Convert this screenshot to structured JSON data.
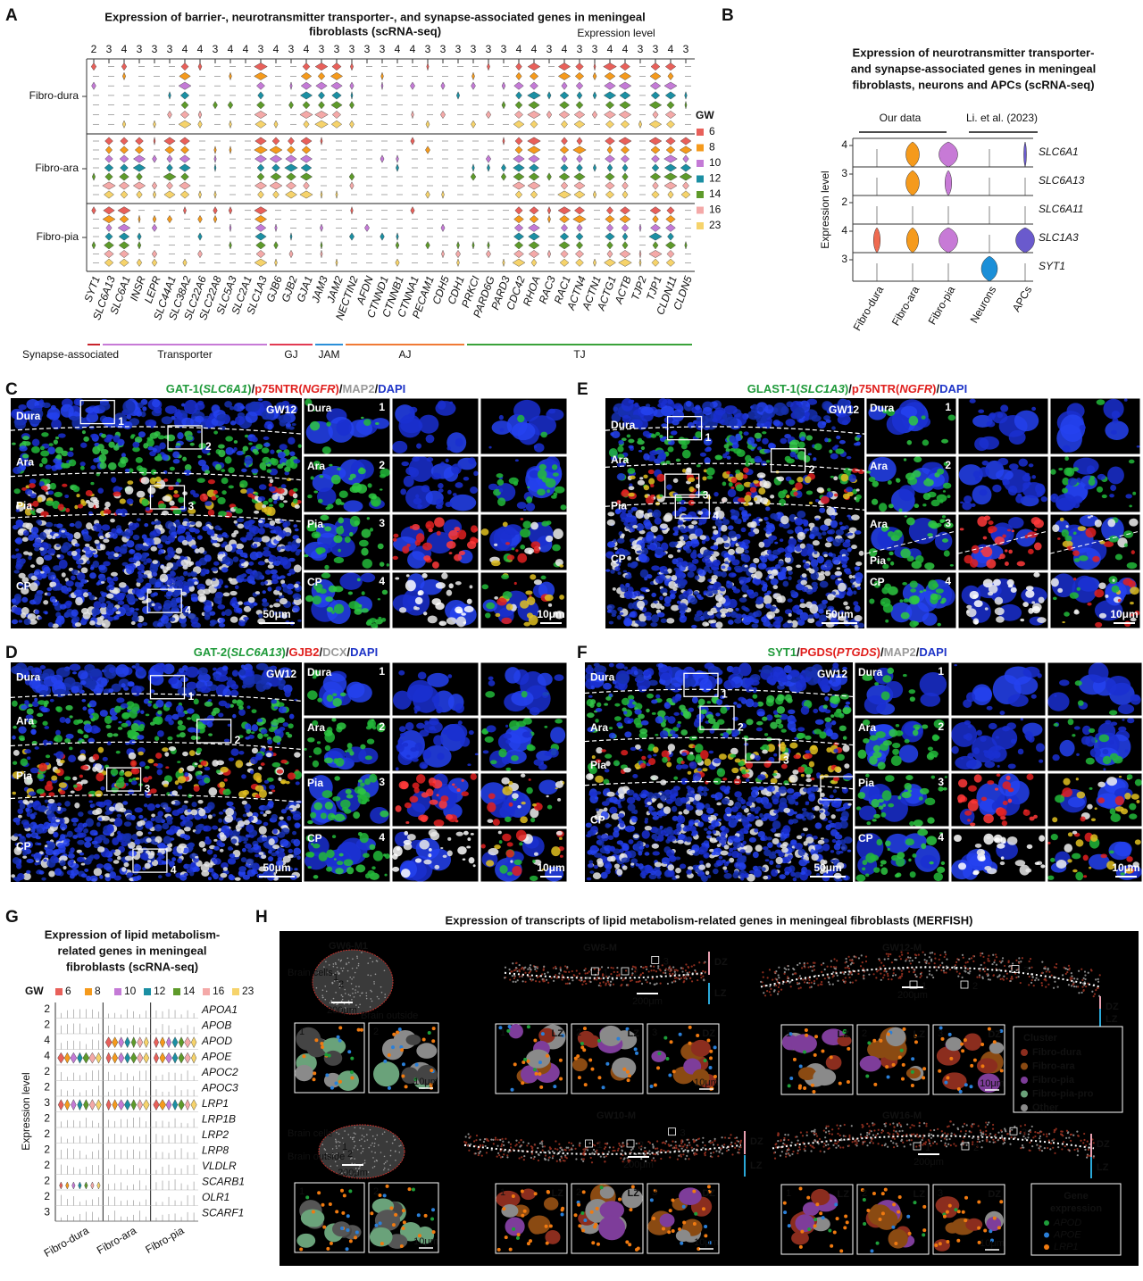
{
  "A": {
    "label": "A",
    "title": [
      "Expression of barrier-, neurotransmitter transporter-, and synapse-associated genes in meningeal",
      "fibroblasts (scRNA-seq)"
    ],
    "axis_label": "Expression level",
    "rows": [
      "Fibro-dura",
      "Fibro-ara",
      "Fibro-pia"
    ],
    "groups": [
      {
        "name": "Synapse-associated",
        "color": "#c8242c",
        "genes": [
          "SYT1"
        ],
        "levels": [
          2
        ]
      },
      {
        "name": "Transporter",
        "color": "#c77ad6",
        "genes": [
          "SLC6A13",
          "SLC6A1",
          "INSR",
          "LEPR",
          "SLC44A1",
          "SLC38A2",
          "SLC22A6",
          "SLC22A8",
          "SLC5A3",
          "SLC2A1",
          "SLC1A3"
        ],
        "levels": [
          3,
          4,
          3,
          3,
          3,
          4,
          4,
          3,
          4,
          4,
          3
        ]
      },
      {
        "name": "GJ",
        "color": "#e23a52",
        "genes": [
          "GJB6",
          "GJB2",
          "GJA1"
        ],
        "levels": [
          4,
          3,
          4
        ]
      },
      {
        "name": "JAM",
        "color": "#2b8fd8",
        "genes": [
          "JAM3",
          "JAM2"
        ],
        "levels": [
          3,
          3
        ]
      },
      {
        "name": "AJ",
        "color": "#f07a35",
        "genes": [
          "NECTIN2",
          "AFDN",
          "CTNND1",
          "CTNNB1",
          "CTNNA1",
          "PECAM1",
          "CDH5",
          "CDH1"
        ],
        "levels": [
          3,
          3,
          3,
          4,
          4,
          3,
          3,
          3
        ]
      },
      {
        "name": "TJ",
        "color": "#3aa23a",
        "genes": [
          "PRKCI",
          "PARD6G",
          "PARD3",
          "CDC42",
          "RHOA",
          "RAC3",
          "RAC1",
          "ACTN4",
          "ACTN1",
          "ACTG1",
          "ACTB",
          "TJP2",
          "TJP1",
          "CLDN11",
          "CLDN5"
        ],
        "levels": [
          3,
          3,
          3,
          4,
          4,
          3,
          4,
          3,
          3,
          4,
          4,
          3,
          3,
          4,
          3
        ]
      }
    ],
    "legend": {
      "title": "GW",
      "items": [
        {
          "label": 6,
          "color": "#e8605a"
        },
        {
          "label": 8,
          "color": "#f59a1c"
        },
        {
          "label": 10,
          "color": "#c47ad6"
        },
        {
          "label": 12,
          "color": "#1b8fa3"
        },
        {
          "label": 14,
          "color": "#5e9a2a"
        },
        {
          "label": 16,
          "color": "#f4a9a8"
        },
        {
          "label": 23,
          "color": "#f6d36b"
        }
      ]
    }
  },
  "B": {
    "label": "B",
    "title": [
      "Expression of neurotransmitter transporter-",
      "and synapse-associated genes in meningeal",
      "fibroblasts, neurons and APCs (scRNA-seq)"
    ],
    "sources": [
      "Our data",
      "Li. et al. (2023)"
    ],
    "axis_label": "Expression level",
    "genes": [
      {
        "name": "SLC6A1",
        "level": 4
      },
      {
        "name": "SLC6A13",
        "level": 3
      },
      {
        "name": "SLC6A11",
        "level": 2
      },
      {
        "name": "SLC1A3",
        "level": 4
      },
      {
        "name": "SYT1",
        "level": 3
      }
    ],
    "categories": [
      {
        "name": "Fibro-dura",
        "color": "#ef6a50"
      },
      {
        "name": "Fibro-ara",
        "color": "#f59a1c"
      },
      {
        "name": "Fibro-pia",
        "color": "#c77ad6"
      },
      {
        "name": "Neurons",
        "color": "#1b8fd8"
      },
      {
        "name": "APCs",
        "color": "#6a5acd"
      }
    ]
  },
  "C": {
    "label": "C",
    "title": [
      {
        "text": "GAT-1(",
        "color": "#1f9a3a"
      },
      {
        "text": "SLC6A1",
        "color": "#1f9a3a",
        "italic": true
      },
      {
        "text": ")",
        "color": "#1f9a3a"
      },
      {
        "text": "/",
        "color": "#111"
      },
      {
        "text": "p75NTR(",
        "color": "#e0201e"
      },
      {
        "text": "NGFR",
        "color": "#e0201e",
        "italic": true
      },
      {
        "text": ")",
        "color": "#e0201e"
      },
      {
        "text": "/",
        "color": "#111"
      },
      {
        "text": "MAP2",
        "color": "#9a9a9a"
      },
      {
        "text": "/",
        "color": "#111"
      },
      {
        "text": "DAPI",
        "color": "#1f35c8"
      }
    ],
    "layers": [
      "Dura",
      "Ara",
      "Pia",
      "CP"
    ],
    "stage": "GW12",
    "scale": "50μm",
    "inset_scale": "10μm",
    "insets": [
      {
        "labels": [
          "Dura"
        ],
        "number": 1
      },
      {
        "labels": [
          "Ara"
        ],
        "number": 2
      },
      {
        "labels": [
          "Pia"
        ],
        "number": 3
      },
      {
        "labels": [
          "CP"
        ],
        "number": 4
      }
    ]
  },
  "D": {
    "label": "D",
    "title": [
      {
        "text": "GAT-2(",
        "color": "#1f9a3a"
      },
      {
        "text": "SLC6A13",
        "color": "#1f9a3a",
        "italic": true
      },
      {
        "text": ")",
        "color": "#1f9a3a"
      },
      {
        "text": "/",
        "color": "#111"
      },
      {
        "text": "GJB2",
        "color": "#e0201e"
      },
      {
        "text": "/",
        "color": "#111"
      },
      {
        "text": "DCX",
        "color": "#9a9a9a"
      },
      {
        "text": "/",
        "color": "#111"
      },
      {
        "text": "DAPI",
        "color": "#1f35c8"
      }
    ],
    "layers": [
      "Dura",
      "Ara",
      "Pia",
      "CP"
    ],
    "stage": "GW12",
    "scale": "50μm",
    "inset_scale": "10μm",
    "insets": [
      {
        "labels": [
          "Dura"
        ],
        "number": 1
      },
      {
        "labels": [
          "Ara"
        ],
        "number": 2
      },
      {
        "labels": [
          "Pia"
        ],
        "number": 3
      },
      {
        "labels": [
          "CP"
        ],
        "number": 4
      }
    ]
  },
  "E": {
    "label": "E",
    "title": [
      {
        "text": "GLAST-1(",
        "color": "#1f9a3a"
      },
      {
        "text": "SLC1A3",
        "color": "#1f9a3a",
        "italic": true
      },
      {
        "text": ")",
        "color": "#1f9a3a"
      },
      {
        "text": "/",
        "color": "#111"
      },
      {
        "text": "p75NTR(",
        "color": "#e0201e"
      },
      {
        "text": "NGFR",
        "color": "#e0201e",
        "italic": true
      },
      {
        "text": ")",
        "color": "#e0201e"
      },
      {
        "text": "/",
        "color": "#111"
      },
      {
        "text": "DAPI",
        "color": "#1f35c8"
      }
    ],
    "layers": [
      "Dura",
      "Ara",
      "Pia",
      "CP"
    ],
    "stage": "GW12",
    "scale": "50μm",
    "inset_scale": "10μm",
    "insets": [
      {
        "labels": [
          "Dura"
        ],
        "number": 1
      },
      {
        "labels": [
          "Ara"
        ],
        "number": 2
      },
      {
        "labels": [
          "Ara",
          "Pia"
        ],
        "number": 3
      },
      {
        "labels": [
          "CP"
        ],
        "number": 4
      }
    ]
  },
  "F": {
    "label": "F",
    "title": [
      {
        "text": "SYT1",
        "color": "#1f9a3a"
      },
      {
        "text": "/",
        "color": "#111"
      },
      {
        "text": "PGDS(",
        "color": "#e0201e"
      },
      {
        "text": "PTGDS",
        "color": "#e0201e",
        "italic": true
      },
      {
        "text": ")",
        "color": "#e0201e"
      },
      {
        "text": "/",
        "color": "#111"
      },
      {
        "text": "MAP2",
        "color": "#9a9a9a"
      },
      {
        "text": "/",
        "color": "#111"
      },
      {
        "text": "DAPI",
        "color": "#1f35c8"
      }
    ],
    "layers": [
      "Dura",
      "Ara",
      "Pia",
      "CP"
    ],
    "stage": "GW12",
    "scale": "50μm",
    "inset_scale": "10μm",
    "insets": [
      {
        "labels": [
          "Dura"
        ],
        "number": 1
      },
      {
        "labels": [
          "Ara"
        ],
        "number": 2
      },
      {
        "labels": [
          "Pia"
        ],
        "number": 3
      },
      {
        "labels": [
          "CP"
        ],
        "number": 4
      }
    ]
  },
  "G": {
    "label": "G",
    "title": [
      "Expression of lipid metabolism-",
      "related genes in meningeal",
      "fibroblasts (scRNA-seq)"
    ],
    "legend": {
      "title": "GW",
      "items": [
        {
          "label": 6,
          "color": "#e8605a"
        },
        {
          "label": 8,
          "color": "#f59a1c"
        },
        {
          "label": 10,
          "color": "#c47ad6"
        },
        {
          "label": 12,
          "color": "#1b8fa3"
        },
        {
          "label": 14,
          "color": "#5e9a2a"
        },
        {
          "label": 16,
          "color": "#f4a9a8"
        },
        {
          "label": 23,
          "color": "#f6d36b"
        }
      ]
    },
    "axis_label": "Expression level",
    "genes": [
      {
        "name": "APOA1",
        "level": 2,
        "color": "#222222"
      },
      {
        "name": "APOB",
        "level": 2,
        "color": "#222222"
      },
      {
        "name": "APOD",
        "level": 4,
        "color": "#e0312f"
      },
      {
        "name": "APOE",
        "level": 4,
        "color": "#e0312f"
      },
      {
        "name": "APOC2",
        "level": 2,
        "color": "#222222"
      },
      {
        "name": "APOC3",
        "level": 2,
        "color": "#222222"
      },
      {
        "name": "LRP1",
        "level": 3,
        "color": "#e0312f"
      },
      {
        "name": "LRP1B",
        "level": 2,
        "color": "#222222"
      },
      {
        "name": "LRP2",
        "level": 2,
        "color": "#222222"
      },
      {
        "name": "LRP8",
        "level": 2,
        "color": "#222222"
      },
      {
        "name": "VLDLR",
        "level": 2,
        "color": "#222222"
      },
      {
        "name": "SCARB1",
        "level": 2,
        "color": "#222222"
      },
      {
        "name": "OLR1",
        "level": 2,
        "color": "#222222"
      },
      {
        "name": "SCARF1",
        "level": 3,
        "color": "#222222"
      }
    ],
    "categories": [
      "Fibro-dura",
      "Fibro-ara",
      "Fibro-pia"
    ]
  },
  "H": {
    "label": "H",
    "title": "Expression of transcripts of lipid metabolism-related genes in meningeal fibroblasts (MERFISH)",
    "zone_colors": [
      "#e8a0b0",
      "#2aa8d8"
    ],
    "sections": [
      {
        "name": "GW6-M1",
        "labels": [
          "Brain cells",
          "Brain outside"
        ],
        "scale": "200μm",
        "insets": [
          {
            "number": 1
          },
          {
            "number": 2
          }
        ],
        "inset_scale": "10μm"
      },
      {
        "name": "GW6-M2",
        "labels": [
          "Brain cells",
          "Brain outside"
        ],
        "scale": "200μm",
        "insets": [
          {
            "number": 1
          },
          {
            "number": 2
          }
        ],
        "inset_scale": "10μm"
      },
      {
        "name": "GW8-M",
        "zones": [
          "DZ",
          "LZ"
        ],
        "scale": "200μm",
        "insets": [
          {
            "number": 1,
            "zone": "LZ"
          },
          {
            "number": 2,
            "zone": "LZ"
          },
          {
            "number": 3,
            "zone": "DZ"
          }
        ],
        "inset_scale": "10μm"
      },
      {
        "name": "GW12-M",
        "zones": [
          "DZ",
          "LZ"
        ],
        "scale": "200μm",
        "insets": [
          {
            "number": 1,
            "zone": "LZ"
          },
          {
            "number": 2,
            "zone": "LZ"
          },
          {
            "number": 3,
            "zone": "DZ"
          }
        ],
        "inset_scale": "10μm"
      },
      {
        "name": "GW10-M",
        "zones": [
          "DZ",
          "LZ"
        ],
        "scale": "200μm",
        "insets": [
          {
            "number": 1,
            "zone": "LZ"
          },
          {
            "number": 2,
            "zone": "LZ"
          },
          {
            "number": 3,
            "zone": "DZ"
          }
        ],
        "inset_scale": "10μm"
      },
      {
        "name": "GW16-M",
        "zones": [
          "DZ",
          "LZ"
        ],
        "scale": "200μm",
        "insets": [
          {
            "number": 1,
            "zone": "LZ"
          },
          {
            "number": 2,
            "zone": "LZ"
          },
          {
            "number": 3,
            "zone": "DZ"
          }
        ],
        "inset_scale": "10μm"
      }
    ],
    "cluster_legend": {
      "title": "Cluster",
      "items": [
        {
          "name": "Fibro-dura",
          "color": "#8b2d1e"
        },
        {
          "name": "Fibro-ara",
          "color": "#8a4a12"
        },
        {
          "name": "Fibro-pia",
          "color": "#7e3d9a"
        },
        {
          "name": "Fibro-pia-pro",
          "color": "#6aa27a"
        },
        {
          "name": "Other",
          "color": "#8a8a8a"
        }
      ]
    },
    "gene_legend": {
      "title": [
        "Gene",
        "expression"
      ],
      "items": [
        {
          "name": "APOD",
          "color": "#1e9e3a"
        },
        {
          "name": "APOE",
          "color": "#2a7fd8"
        },
        {
          "name": "LRP1",
          "color": "#f07a10"
        }
      ]
    }
  }
}
